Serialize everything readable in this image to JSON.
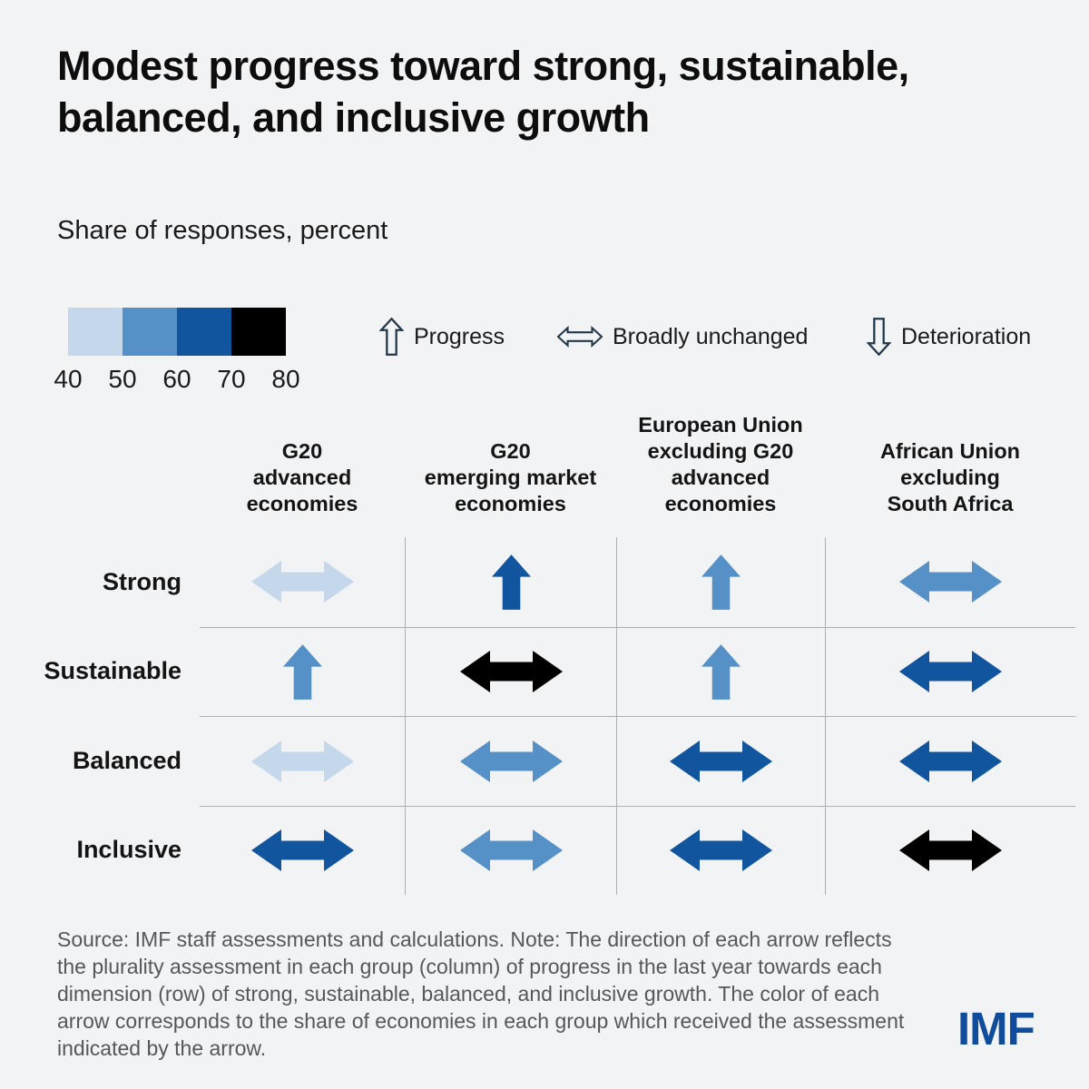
{
  "title": "Modest progress toward strong, sustainable, balanced, and inclusive growth",
  "subtitle": "Share of responses, percent",
  "color_scale": {
    "tick_labels": [
      "40",
      "50",
      "60",
      "70",
      "80"
    ],
    "colors": [
      "#C5D8EB",
      "#5590C7",
      "#11559E",
      "#000000"
    ]
  },
  "arrow_legend": {
    "progress_label": "Progress",
    "unchanged_label": "Broadly unchanged",
    "deterioration_label": "Deterioration"
  },
  "chart_data": {
    "type": "heatmap",
    "title": "Modest progress toward strong, sustainable, balanced, and inclusive growth",
    "subtitle": "Share of responses, percent",
    "legend_position": "top",
    "color_scale_bins": [
      40,
      50,
      60,
      70,
      80
    ],
    "color_scale_colors": [
      "#C5D8EB",
      "#5590C7",
      "#11559E",
      "#000000"
    ],
    "columns": [
      "G20 advanced economies",
      "G20 emerging market economies",
      "European Union excluding G20 advanced economies",
      "African Union excluding South Africa"
    ],
    "columns_lines": [
      [
        "G20",
        "advanced",
        "economies"
      ],
      [
        "G20",
        "emerging market",
        "economies"
      ],
      [
        "European Union",
        "excluding G20",
        "advanced",
        "economies"
      ],
      [
        "African Union",
        "excluding",
        "South Africa"
      ]
    ],
    "rows": [
      "Strong",
      "Sustainable",
      "Balanced",
      "Inclusive"
    ],
    "cells": [
      [
        {
          "assessment": "unchanged",
          "share_range": "40-50",
          "color": "#C5D8EB"
        },
        {
          "assessment": "progress",
          "share_range": "60-70",
          "color": "#11559E"
        },
        {
          "assessment": "progress",
          "share_range": "50-60",
          "color": "#5590C7"
        },
        {
          "assessment": "unchanged",
          "share_range": "50-60",
          "color": "#5590C7"
        }
      ],
      [
        {
          "assessment": "progress",
          "share_range": "50-60",
          "color": "#5590C7"
        },
        {
          "assessment": "unchanged",
          "share_range": "70-80",
          "color": "#000000"
        },
        {
          "assessment": "progress",
          "share_range": "50-60",
          "color": "#5590C7"
        },
        {
          "assessment": "unchanged",
          "share_range": "60-70",
          "color": "#11559E"
        }
      ],
      [
        {
          "assessment": "unchanged",
          "share_range": "40-50",
          "color": "#C5D8EB"
        },
        {
          "assessment": "unchanged",
          "share_range": "50-60",
          "color": "#5590C7"
        },
        {
          "assessment": "unchanged",
          "share_range": "60-70",
          "color": "#11559E"
        },
        {
          "assessment": "unchanged",
          "share_range": "60-70",
          "color": "#11559E"
        }
      ],
      [
        {
          "assessment": "unchanged",
          "share_range": "60-70",
          "color": "#11559E"
        },
        {
          "assessment": "unchanged",
          "share_range": "50-60",
          "color": "#5590C7"
        },
        {
          "assessment": "unchanged",
          "share_range": "60-70",
          "color": "#11559E"
        },
        {
          "assessment": "unchanged",
          "share_range": "70-80",
          "color": "#000000"
        }
      ]
    ]
  },
  "footnote": "Source: IMF staff assessments and calculations. Note: The direction of each arrow reflects the plurality assessment in each group (column) of progress in the last year towards each dimension (row) of strong, sustainable, balanced, and inclusive growth. The color of each arrow corresponds to the share of economies in each group which received the assessment indicated by the arrow.",
  "logo_text": "IMF"
}
